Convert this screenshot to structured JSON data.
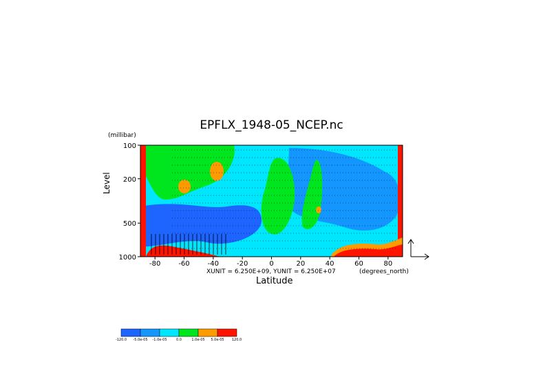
{
  "chart_data": {
    "type": "heatmap",
    "title": "EPFLX_1948-05_NCEP.nc",
    "xlabel": "Latitude",
    "x_unit": "(degrees_north)",
    "ylabel": "Level",
    "y_unit": "(millibar)",
    "xlim": [
      -90,
      90
    ],
    "ylim": [
      1000,
      100
    ],
    "y_scale": "log",
    "x_ticks": [
      "-80",
      "-60",
      "-40",
      "-20",
      "0",
      "20",
      "40",
      "60",
      "80"
    ],
    "y_ticks": [
      "100",
      "200",
      "500",
      "1000"
    ],
    "vector_scale": "XUNIT = 6.250E+09, YUNIT = 6.250E+07",
    "colorbar": {
      "labels": [
        "-120.0",
        "-5.0e-05",
        "-1.0e-05",
        "0.0",
        "1.0e-05",
        "5.0e-05",
        "120.0"
      ],
      "colors": [
        "#1e64ff",
        "#1496ff",
        "#00e6ff",
        "#00e61e",
        "#ff9a00",
        "#ff1400"
      ]
    },
    "regions": [
      {
        "name": "background",
        "color": "#1496ff"
      },
      {
        "name": "south-high-lat-positive",
        "color": "#00e61e"
      },
      {
        "name": "tropical-positive-band",
        "color": "#00e61e"
      },
      {
        "name": "orange-core-45S",
        "color": "#ff9a00"
      },
      {
        "name": "orange-core-60S",
        "color": "#ff9a00"
      },
      {
        "name": "lower-negative",
        "color": "#1e64ff"
      },
      {
        "name": "north-surface-positive",
        "color": "#ff1400"
      }
    ]
  }
}
